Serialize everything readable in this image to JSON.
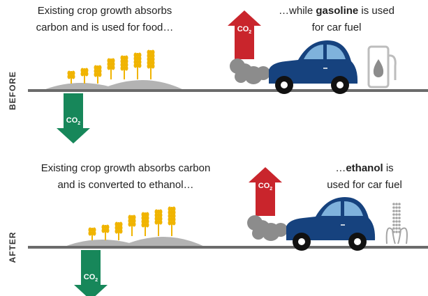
{
  "co2": {
    "main": "CO",
    "sub": "2"
  },
  "panels": [
    {
      "label": "BEFORE",
      "crop_text": [
        "Existing crop growth absorbs",
        "carbon and is used for food…"
      ],
      "fuel_text": [
        [
          {
            "text": "…while "
          },
          {
            "text": "gasoline",
            "bold": true
          },
          {
            "text": " is used"
          }
        ],
        [
          {
            "text": "for car fuel"
          }
        ]
      ],
      "icon": "pump"
    },
    {
      "label": "AFTER",
      "crop_text": [
        "Existing crop growth absorbs carbon",
        "and is converted to ethanol…"
      ],
      "fuel_text": [
        [
          {
            "text": "…"
          },
          {
            "text": "ethanol",
            "bold": true
          },
          {
            "text": " is"
          }
        ],
        [
          {
            "text": "used for car fuel"
          }
        ]
      ],
      "icon": "corn"
    }
  ]
}
